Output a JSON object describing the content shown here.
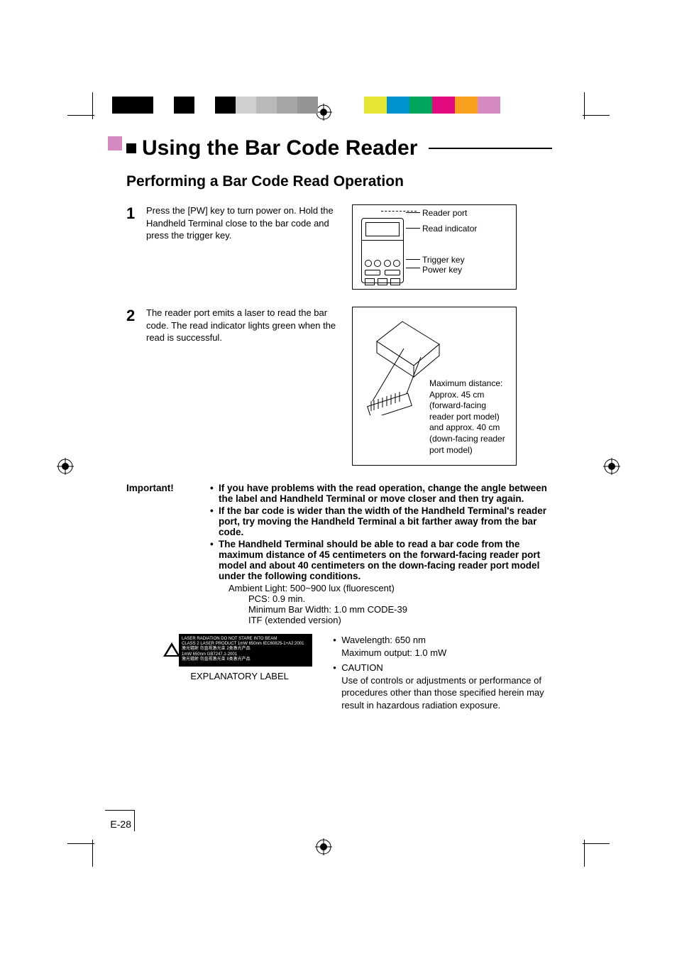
{
  "colors": {
    "accent": "#d489c0",
    "gray_bar": [
      "#000000",
      "#000000",
      "#ffffff",
      "#000000",
      "#ffffff",
      "#000000",
      "#cfcfcf",
      "#b9b9b9",
      "#a6a6a6",
      "#949494"
    ],
    "color_bar": [
      "#e6e732",
      "#0093d0",
      "#00a75d",
      "#e3097e",
      "#f9a11f",
      "#d489c0"
    ]
  },
  "title": "Using the Bar Code Reader",
  "subtitle": "Performing a Bar Code Read Operation",
  "steps": [
    {
      "num": "1",
      "text": "Press the [PW] key to turn power on. Hold the Handheld Terminal close to the bar code and press the trigger key."
    },
    {
      "num": "2",
      "text": "The reader port emits a laser to read the bar code. The read indicator lights green when the read is successful."
    }
  ],
  "diagram1_labels": {
    "reader_port": "Reader port",
    "read_indicator": "Read indicator",
    "trigger_key": "Trigger key",
    "power_key": "Power key"
  },
  "diagram2_text": "Maximum distance: Approx. 45 cm (forward-facing reader port model) and approx. 40 cm (down-facing reader port model)",
  "important_label": "Important!",
  "important_bullets": [
    "If you have problems with the read operation, change the angle between the label and Handheld Terminal or move closer and then try again.",
    "If the bar code is wider than the width of the Handheld Terminal's reader port, try moving the Handheld Terminal a bit farther away from the bar code.",
    "The Handheld Terminal should be able to read a bar code from the maximum distance of 45 centimeters on the forward-facing reader port model and about 40 centimeters on the down-facing reader port model under the following conditions."
  ],
  "conditions": [
    "Ambient Light: 500~900 lux (fluorescent)",
    "PCS: 0.9 min.",
    "Minimum Bar Width: 1.0 mm CODE-39",
    "ITF (extended version)"
  ],
  "laser_label_lines": [
    "LASER RADIATION  DO NOT STARE INTO BEAM",
    "CLASS 2 LASER PRODUCT 1mW 650nm IEC60825-1+A2:2001",
    "激光辐射 勿直视激光束 2类激光产品",
    "1mW 650nm GB7247.1-2001",
    "激光辐射 勿直视激光束 II类激光产品"
  ],
  "expl_caption": "EXPLANATORY LABEL",
  "right_notes": {
    "wavelength": "Wavelength: 650 nm",
    "max_output": "Maximum output: 1.0 mW",
    "caution": "CAUTION",
    "caution_body": "Use of controls or adjustments or performance of procedures other than those specified herein may result in hazardous radiation exposure."
  },
  "page_number": "E-28"
}
